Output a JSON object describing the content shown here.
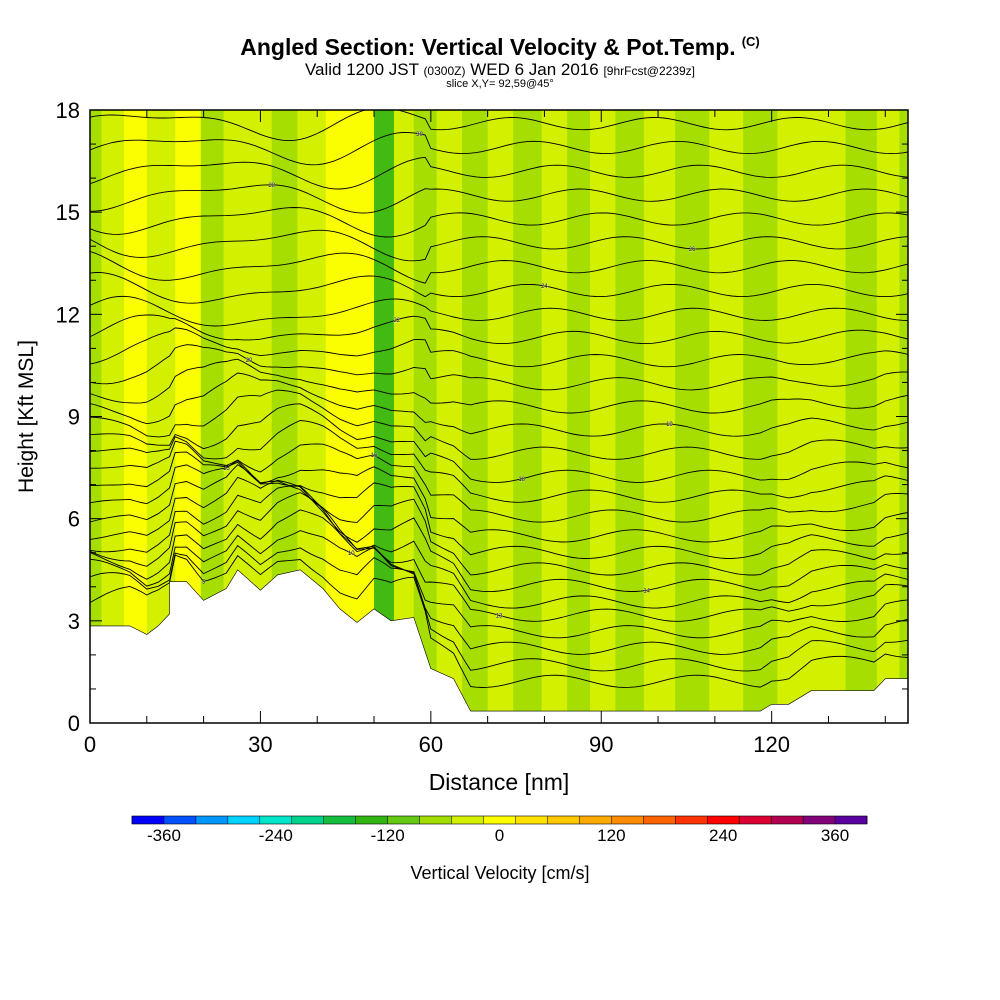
{
  "title": "Angled Section: Vertical Velocity & Pot.Temp.",
  "title_unit": "(C)",
  "subtitle": {
    "valid": "Valid 1200 JST",
    "zulu": "(0300Z)",
    "date": "WED 6 Jan 2016",
    "fcst": "[9hrFcst@2239z]"
  },
  "slice_text": "slice X,Y= 92,59@45°",
  "chart_data": {
    "type": "heatmap",
    "xlabel": "Distance [nm]",
    "ylabel": "Height [Kft MSL]",
    "xlim": [
      0,
      144
    ],
    "ylim": [
      0,
      18
    ],
    "x_ticks": [
      0,
      30,
      60,
      90,
      120
    ],
    "y_ticks": [
      0,
      3,
      6,
      9,
      12,
      15,
      18
    ],
    "colorbar": {
      "label": "Vertical Velocity [cm/s]",
      "tick_values": [
        -360,
        -240,
        -120,
        0,
        120,
        240,
        360
      ],
      "colors": [
        "#0000ff",
        "#0050ff",
        "#0096ff",
        "#00d2ff",
        "#00e6c8",
        "#00d28c",
        "#14be3c",
        "#32b414",
        "#64c814",
        "#a0dc00",
        "#d2f000",
        "#ffff00",
        "#ffe100",
        "#ffc800",
        "#ffaa00",
        "#ff8c00",
        "#ff6400",
        "#ff3200",
        "#ff0000",
        "#dc0032",
        "#b40050",
        "#820078",
        "#5a00a0"
      ]
    },
    "velocity_columns": [
      {
        "x": 0,
        "level": 9
      },
      {
        "x": 4,
        "level": 10
      },
      {
        "x": 8,
        "level": 11
      },
      {
        "x": 12,
        "level": 10
      },
      {
        "x": 18,
        "level": 11
      },
      {
        "x": 21,
        "level": 9
      },
      {
        "x": 26,
        "level": 10
      },
      {
        "x": 30,
        "level": 10
      },
      {
        "x": 34,
        "level": 9
      },
      {
        "x": 39,
        "level": 10
      },
      {
        "x": 44,
        "level": 11
      },
      {
        "x": 48,
        "level": 11
      },
      {
        "x": 52,
        "level": 7
      },
      {
        "x": 55,
        "level": 10
      },
      {
        "x": 59,
        "level": 9
      },
      {
        "x": 63,
        "level": 10
      },
      {
        "x": 68,
        "level": 9
      },
      {
        "x": 72,
        "level": 10
      },
      {
        "x": 77,
        "level": 9
      },
      {
        "x": 82,
        "level": 10
      },
      {
        "x": 86,
        "level": 9
      },
      {
        "x": 90,
        "level": 10
      },
      {
        "x": 95,
        "level": 9
      },
      {
        "x": 100,
        "level": 10
      },
      {
        "x": 106,
        "level": 9
      },
      {
        "x": 112,
        "level": 10
      },
      {
        "x": 118,
        "level": 9
      },
      {
        "x": 124,
        "level": 10
      },
      {
        "x": 130,
        "level": 10
      },
      {
        "x": 136,
        "level": 9
      },
      {
        "x": 141,
        "level": 10
      },
      {
        "x": 144,
        "level": 9
      }
    ],
    "terrain_kft": [
      [
        0,
        2.85
      ],
      [
        7,
        2.85
      ],
      [
        10,
        2.6
      ],
      [
        12,
        2.85
      ],
      [
        14,
        3.2
      ],
      [
        14,
        4.15
      ],
      [
        17,
        4.15
      ],
      [
        20,
        3.6
      ],
      [
        24,
        3.95
      ],
      [
        26,
        4.5
      ],
      [
        30,
        3.9
      ],
      [
        33,
        4.35
      ],
      [
        37,
        4.5
      ],
      [
        41,
        3.95
      ],
      [
        44,
        3.35
      ],
      [
        47,
        2.95
      ],
      [
        50,
        3.35
      ],
      [
        53,
        3.0
      ],
      [
        57,
        3.1
      ],
      [
        60,
        1.6
      ],
      [
        64,
        1.3
      ],
      [
        67,
        0.35
      ],
      [
        118,
        0.35
      ],
      [
        120,
        0.55
      ],
      [
        123,
        0.55
      ],
      [
        127,
        0.95
      ],
      [
        138,
        0.95
      ],
      [
        140,
        1.3
      ],
      [
        144,
        1.3
      ]
    ],
    "theta_contours": [
      {
        "base": 0.9,
        "label": "5"
      },
      {
        "base": 1.4
      },
      {
        "base": 1.9,
        "label": "10"
      },
      {
        "base": 2.4
      },
      {
        "base": 2.9,
        "label": "13"
      },
      {
        "base": 3.3
      },
      {
        "base": 3.8,
        "label": "14"
      },
      {
        "base": 4.3
      },
      {
        "base": 4.8,
        "label": "15"
      },
      {
        "base": 5.3
      },
      {
        "base": 5.9,
        "label": "16"
      },
      {
        "base": 6.5
      },
      {
        "base": 7.1,
        "label": "18"
      },
      {
        "base": 7.8
      },
      {
        "base": 8.5,
        "label": "19"
      },
      {
        "base": 9.2
      },
      {
        "base": 9.9,
        "label": "20"
      },
      {
        "base": 10.6
      },
      {
        "base": 11.3,
        "label": "22"
      },
      {
        "base": 12.0
      },
      {
        "base": 12.7,
        "label": "24"
      },
      {
        "base": 13.4
      },
      {
        "base": 14.1,
        "label": "26"
      },
      {
        "base": 14.8
      },
      {
        "base": 15.5,
        "label": "28"
      },
      {
        "base": 16.2
      },
      {
        "base": 16.9,
        "label": "30"
      },
      {
        "base": 17.6
      }
    ]
  }
}
